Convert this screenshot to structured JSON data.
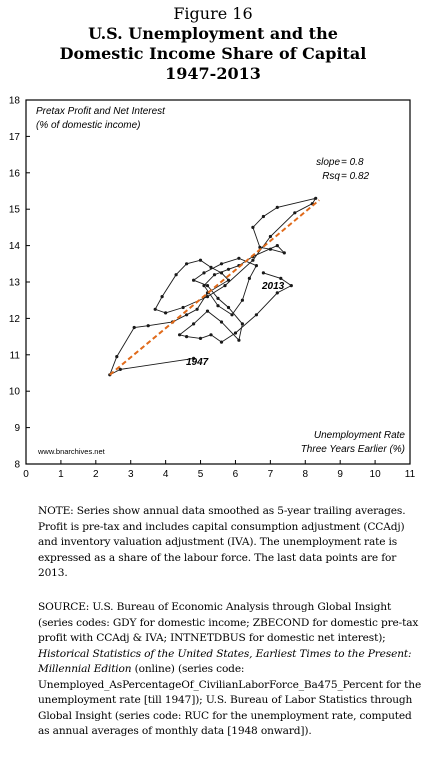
{
  "figure_label": "Figure 16",
  "title_lines": [
    "U.S. Unemployment and the",
    "Domestic Income Share of Capital",
    "1947-2013"
  ],
  "chart_data": {
    "type": "scatter",
    "mode": "connected",
    "title": "U.S. Unemployment and the Domestic Income Share of Capital 1947-2013",
    "ylabel_lines": [
      "Pretax Profit and Net Interest",
      "(% of domestic income)"
    ],
    "xlabel_lines": [
      "Unemployment Rate",
      "Three Years Earlier (%)"
    ],
    "xlim": [
      0,
      11
    ],
    "ylim": [
      8,
      18
    ],
    "xticks": [
      0,
      1,
      2,
      3,
      4,
      5,
      6,
      7,
      8,
      9,
      10,
      11
    ],
    "yticks": [
      8,
      9,
      10,
      11,
      12,
      13,
      14,
      15,
      16,
      17,
      18
    ],
    "grid": false,
    "line_color": "#1a1a1a",
    "trend_color": "#e06a1a",
    "series": [
      {
        "x": [
          4.8,
          2.7,
          2.4,
          2.6,
          3.1,
          3.5,
          4.2,
          4.6,
          4.9,
          5.2,
          5.8,
          5.6,
          5.3,
          5.0,
          4.6,
          4.3,
          3.9,
          3.7,
          4.0,
          4.5,
          5.2,
          5.7,
          6.5,
          7.0,
          7.7,
          8.2,
          8.3,
          7.2,
          6.8,
          6.5,
          6.7,
          7.0,
          7.4,
          7.2,
          6.5,
          6.1,
          5.8,
          5.4,
          5.1,
          5.5,
          5.9,
          6.2,
          6.4,
          6.6,
          6.1,
          5.6,
          5.1,
          4.8,
          5.2,
          5.5,
          5.8,
          6.2,
          6.1,
          5.6,
          5.2,
          4.8,
          4.4,
          4.6,
          5.0,
          5.3,
          5.6,
          6.0,
          6.6,
          7.2,
          7.6,
          7.3,
          6.8
        ],
        "y": [
          10.9,
          10.6,
          10.45,
          10.95,
          11.75,
          11.8,
          11.9,
          12.1,
          12.25,
          12.7,
          13.05,
          13.25,
          13.4,
          13.6,
          13.5,
          13.2,
          12.6,
          12.25,
          12.15,
          12.3,
          12.6,
          12.9,
          13.6,
          14.25,
          14.9,
          15.15,
          15.3,
          15.05,
          14.8,
          14.5,
          13.95,
          13.9,
          13.8,
          14.0,
          13.7,
          13.45,
          13.35,
          13.2,
          12.9,
          12.35,
          12.1,
          12.5,
          13.1,
          13.45,
          13.65,
          13.5,
          13.25,
          13.05,
          12.9,
          12.55,
          12.3,
          11.85,
          11.4,
          11.9,
          12.2,
          11.85,
          11.55,
          11.5,
          11.45,
          11.55,
          11.35,
          11.6,
          12.1,
          12.7,
          12.9,
          13.1,
          13.25
        ]
      }
    ],
    "trendline": {
      "slope": 0.8,
      "x": [
        2.4,
        8.4
      ],
      "y": [
        10.45,
        15.25
      ]
    },
    "annotations": {
      "stats": [
        "slope",
        "= 0.8",
        "Rsq",
        "= 0.82"
      ],
      "label_start": "1947",
      "label_end": "2013",
      "credit": "www.bnarchives.net"
    }
  },
  "note_text": "NOTE: Series show annual data smoothed as 5-year trailing averages. Profit is pre-tax and includes capital consumption adjustment (CCAdj) and inventory valuation adjustment (IVA). The unemployment rate is expressed as a share of the labour force. The last data points are for 2013.",
  "source": {
    "part1": "SOURCE: U.S. Bureau of Economic Analysis through Global Insight (series codes: GDY for domestic income; ZBECOND for domestic pre-tax profit with CCAdj & IVA; INTNETDBUS for domestic net interest); ",
    "italic": "Historical Statistics of the United States, Earliest Times to the Present: Millennial Edition",
    "part2": " (online) (series code: Unemployed_AsPercentageOf_CivilianLaborForce_Ba475_Percent for the unemployment rate [till 1947]); U.S. Bureau of Labor Statistics through Global Insight (series code: RUC for the unemployment rate, computed as annual averages of monthly data [1948 onward])."
  }
}
